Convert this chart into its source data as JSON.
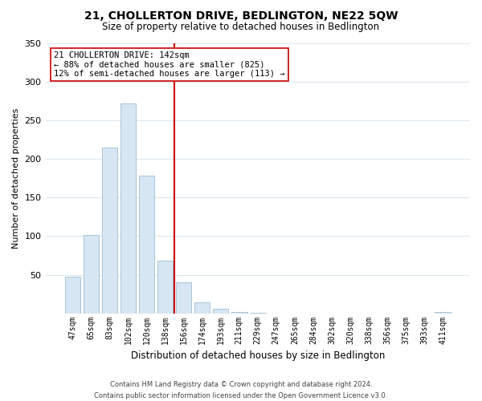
{
  "title": "21, CHOLLERTON DRIVE, BEDLINGTON, NE22 5QW",
  "subtitle": "Size of property relative to detached houses in Bedlington",
  "xlabel": "Distribution of detached houses by size in Bedlington",
  "ylabel": "Number of detached properties",
  "categories": [
    "47sqm",
    "65sqm",
    "83sqm",
    "102sqm",
    "120sqm",
    "138sqm",
    "156sqm",
    "174sqm",
    "193sqm",
    "211sqm",
    "229sqm",
    "247sqm",
    "265sqm",
    "284sqm",
    "302sqm",
    "320sqm",
    "338sqm",
    "356sqm",
    "375sqm",
    "393sqm",
    "411sqm"
  ],
  "values": [
    47,
    101,
    215,
    272,
    178,
    68,
    40,
    14,
    6,
    2,
    1,
    0,
    0,
    0,
    0,
    0,
    0,
    0,
    0,
    0,
    2
  ],
  "bar_facecolor": "#d6e6f2",
  "bar_edgecolor": "#a8c4d8",
  "vline_x": 5.5,
  "vline_color": "#cc0000",
  "annotation_title": "21 CHOLLERTON DRIVE: 142sqm",
  "annotation_line1": "← 88% of detached houses are smaller (825)",
  "annotation_line2": "12% of semi-detached houses are larger (113) →",
  "annotation_box_color": "#ffffff",
  "annotation_box_edge": "#cc0000",
  "ylim": [
    0,
    350
  ],
  "yticks": [
    0,
    50,
    100,
    150,
    200,
    250,
    300,
    350
  ],
  "footer1": "Contains HM Land Registry data © Crown copyright and database right 2024.",
  "footer2": "Contains public sector information licensed under the Open Government Licence v3.0.",
  "bg_color": "#ffffff",
  "grid_color": "#dce8f0"
}
